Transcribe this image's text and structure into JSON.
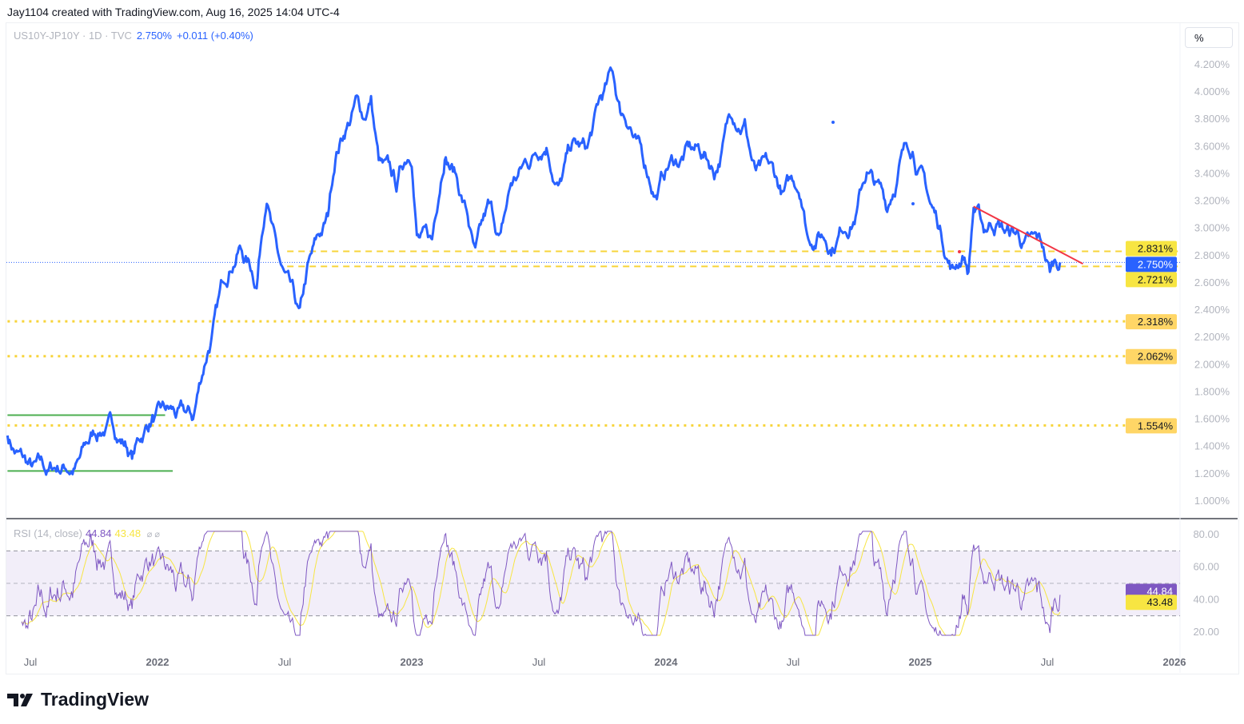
{
  "credit": "Jay1104 created with TradingView.com, Aug 16, 2025 14:04 UTC-4",
  "legend": {
    "symbol": "US10Y-JP10Y · 1D · TVC",
    "price": "2.750%",
    "change": "+0.011 (+0.40%)"
  },
  "rsi_legend": {
    "label": "RSI (14, close)",
    "rsi": "44.84",
    "sma": "43.48",
    "icons": "⌀ ⌀"
  },
  "scale_button": "%",
  "brand": "TradingView",
  "colors": {
    "price": "#2962ff",
    "level": "#f7d43a",
    "green": "#4caf50",
    "trend": "#f23645",
    "rsi": "#7e57c2",
    "rsi_ma": "#f7e542"
  },
  "chart_data": [
    {
      "type": "line",
      "title": "US10Y-JP10Y",
      "ylabel": "%",
      "ylim": [
        1.0,
        4.2
      ],
      "yticks": [
        "4.200%",
        "4.000%",
        "3.800%",
        "3.600%",
        "3.400%",
        "3.200%",
        "3.000%",
        "2.800%",
        "2.600%",
        "2.400%",
        "2.200%",
        "2.000%",
        "1.800%",
        "1.600%",
        "1.400%",
        "1.200%",
        "1.000%"
      ],
      "xticks": [
        {
          "t": 2021.5,
          "label": "Jul"
        },
        {
          "t": 2022,
          "label": "2022"
        },
        {
          "t": 2022.5,
          "label": "Jul"
        },
        {
          "t": 2023,
          "label": "2023"
        },
        {
          "t": 2023.5,
          "label": "Jul"
        },
        {
          "t": 2024,
          "label": "2024"
        },
        {
          "t": 2024.5,
          "label": "Jul"
        },
        {
          "t": 2025,
          "label": "2025"
        },
        {
          "t": 2025.5,
          "label": "Jul"
        },
        {
          "t": 2026,
          "label": "2026"
        }
      ],
      "xlim": [
        2021.41,
        2026.02
      ],
      "series": [
        {
          "name": "US10Y-JP10Y",
          "points": [
            [
              2021.41,
              1.48
            ],
            [
              2021.51,
              1.28
            ],
            [
              2021.57,
              1.22
            ],
            [
              2021.69,
              1.31
            ],
            [
              2021.79,
              1.48
            ],
            [
              2021.88,
              1.39
            ],
            [
              2021.9,
              1.31
            ],
            [
              2021.98,
              1.63
            ],
            [
              2022.06,
              1.69
            ],
            [
              2022.14,
              1.6
            ],
            [
              2022.2,
              2.1
            ],
            [
              2022.25,
              2.62
            ],
            [
              2022.29,
              2.68
            ],
            [
              2022.32,
              2.86
            ],
            [
              2022.39,
              2.56
            ],
            [
              2022.43,
              3.18
            ],
            [
              2022.47,
              2.86
            ],
            [
              2022.51,
              2.68
            ],
            [
              2022.56,
              2.42
            ],
            [
              2022.59,
              2.74
            ],
            [
              2022.67,
              3.09
            ],
            [
              2022.7,
              3.5
            ],
            [
              2022.74,
              3.71
            ],
            [
              2022.78,
              3.97
            ],
            [
              2022.81,
              3.8
            ],
            [
              2022.84,
              3.97
            ],
            [
              2022.87,
              3.5
            ],
            [
              2022.94,
              3.27
            ],
            [
              2023.0,
              3.45
            ],
            [
              2023.02,
              2.95
            ],
            [
              2023.08,
              2.92
            ],
            [
              2023.13,
              3.5
            ],
            [
              2023.17,
              3.41
            ],
            [
              2023.22,
              3.09
            ],
            [
              2023.25,
              2.86
            ],
            [
              2023.3,
              3.21
            ],
            [
              2023.35,
              2.97
            ],
            [
              2023.39,
              3.33
            ],
            [
              2023.47,
              3.5
            ],
            [
              2023.53,
              3.59
            ],
            [
              2023.58,
              3.33
            ],
            [
              2023.63,
              3.62
            ],
            [
              2023.69,
              3.59
            ],
            [
              2023.74,
              3.97
            ],
            [
              2023.79,
              4.15
            ],
            [
              2023.82,
              3.85
            ],
            [
              2023.86,
              3.74
            ],
            [
              2023.91,
              3.5
            ],
            [
              2023.96,
              3.24
            ],
            [
              2024.01,
              3.45
            ],
            [
              2024.05,
              3.45
            ],
            [
              2024.08,
              3.62
            ],
            [
              2024.15,
              3.56
            ],
            [
              2024.19,
              3.36
            ],
            [
              2024.26,
              3.8
            ],
            [
              2024.31,
              3.8
            ],
            [
              2024.35,
              3.45
            ],
            [
              2024.4,
              3.5
            ],
            [
              2024.46,
              3.27
            ],
            [
              2024.53,
              3.21
            ],
            [
              2024.56,
              2.92
            ],
            [
              2024.6,
              2.97
            ],
            [
              2024.65,
              2.8
            ],
            [
              2024.7,
              2.97
            ],
            [
              2024.75,
              3.12
            ],
            [
              2024.79,
              3.41
            ],
            [
              2024.84,
              3.33
            ],
            [
              2024.87,
              3.12
            ],
            [
              2024.92,
              3.5
            ],
            [
              2024.97,
              3.56
            ],
            [
              2025.0,
              3.45
            ],
            [
              2025.04,
              3.18
            ],
            [
              2025.09,
              2.86
            ],
            [
              2025.13,
              2.71
            ],
            [
              2025.17,
              2.77
            ],
            [
              2025.19,
              2.68
            ],
            [
              2025.21,
              3.15
            ],
            [
              2025.25,
              2.97
            ],
            [
              2025.3,
              3.03
            ],
            [
              2025.34,
              2.99
            ],
            [
              2025.39,
              2.92
            ],
            [
              2025.43,
              2.95
            ],
            [
              2025.48,
              2.86
            ],
            [
              2025.51,
              2.68
            ],
            [
              2025.53,
              2.77
            ],
            [
              2025.55,
              2.75
            ]
          ]
        }
      ],
      "levels": [
        {
          "value": 2.831,
          "label": "2.831%",
          "style": "dashed",
          "from": 2022.51
        },
        {
          "value": 2.721,
          "label": "2.721%",
          "style": "dashed",
          "from": 2022.51
        },
        {
          "value": 2.318,
          "label": "2.318%",
          "style": "dotted",
          "from": 2021.41
        },
        {
          "value": 2.062,
          "label": "2.062%",
          "style": "dotted",
          "from": 2021.41
        },
        {
          "value": 1.554,
          "label": "1.554%",
          "style": "dotted",
          "from": 2021.41
        }
      ],
      "last": {
        "value": 2.75,
        "label": "2.750%"
      },
      "green_lines": [
        {
          "value": 1.63,
          "from": 2021.41,
          "to": 2022.03
        },
        {
          "value": 1.22,
          "from": 2021.41,
          "to": 2022.06
        }
      ],
      "trendline": {
        "from": [
          2025.21,
          3.16
        ],
        "to": [
          2025.64,
          2.74
        ]
      }
    },
    {
      "type": "line",
      "title": "RSI (14, close)",
      "ylim": [
        20,
        80
      ],
      "yticks": [
        "80.00",
        "60.00",
        "40.00",
        "20.00"
      ],
      "band": [
        30,
        70
      ],
      "midline": 50,
      "last": [
        {
          "value": 44.84,
          "label": "44.84"
        },
        {
          "value": 43.48,
          "label": "43.48"
        }
      ]
    }
  ]
}
